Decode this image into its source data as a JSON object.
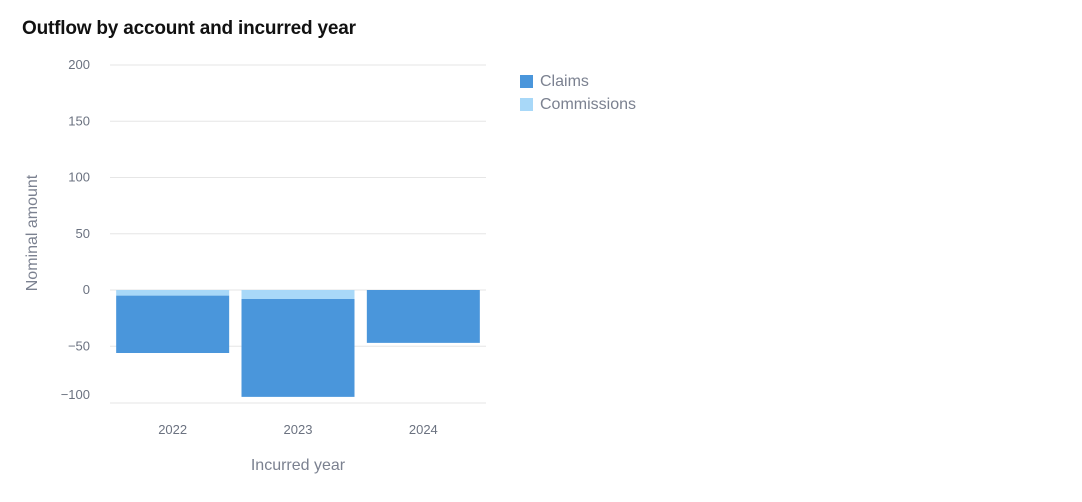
{
  "chart_data": {
    "type": "bar",
    "stacked": true,
    "title": "Outflow by account and incurred year",
    "xlabel": "Incurred year",
    "ylabel": "Nominal amount",
    "categories": [
      "2022",
      "2023",
      "2024"
    ],
    "series": [
      {
        "name": "Claims",
        "color": "#4a96db",
        "values": [
          -51,
          -87,
          -47
        ]
      },
      {
        "name": "Commissions",
        "color": "#a8d8f8",
        "values": [
          -5,
          -8,
          0
        ]
      }
    ],
    "yticks": [
      200,
      150,
      100,
      50,
      0,
      -50,
      -100
    ],
    "ytick_labels": [
      "200",
      "150",
      "100",
      "50",
      "0",
      "−50",
      "−100"
    ],
    "ylim": [
      -100,
      200
    ],
    "grid": true,
    "legend_position": "top-right"
  }
}
